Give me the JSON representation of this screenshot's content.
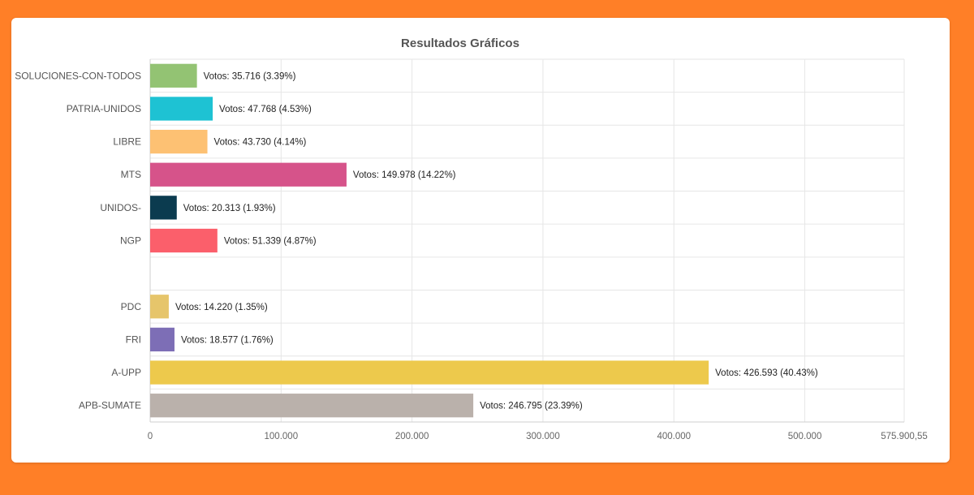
{
  "chart_data": {
    "type": "bar",
    "orientation": "horizontal",
    "title": "Resultados Gráficos",
    "xlabel": "",
    "ylabel": "",
    "xlim": [
      0,
      575900.55
    ],
    "x_ticks": [
      0,
      100000,
      200000,
      300000,
      400000,
      500000,
      575900.55
    ],
    "x_tick_labels": [
      "0",
      "100.000",
      "200.000",
      "300.000",
      "400.000",
      "500.000",
      "575.900,55"
    ],
    "grid": true,
    "legend": "none",
    "bar_label_prefix": "Votos:",
    "categories": [
      "SOLUCIONES-CON-TODOS",
      "PATRIA-UNIDOS",
      "LIBRE",
      "MTS",
      "UNIDOS-",
      "NGP",
      "",
      "PDC",
      "FRI",
      "A-UPP",
      "APB-SUMATE"
    ],
    "values": [
      35716,
      47768,
      43730,
      149978,
      20313,
      51339,
      0,
      14220,
      18577,
      426593,
      246795
    ],
    "value_labels": [
      "35.716",
      "47.768",
      "43.730",
      "149.978",
      "20.313",
      "51.339",
      "",
      "14.220",
      "18.577",
      "426.593",
      "246.795"
    ],
    "percent_labels": [
      "3.39%",
      "4.53%",
      "4.14%",
      "14.22%",
      "1.93%",
      "4.87%",
      "",
      "1.35%",
      "1.76%",
      "40.43%",
      "23.39%"
    ],
    "colors": [
      "#93c373",
      "#1ec2d3",
      "#fdc173",
      "#d6538a",
      "#0b3b4f",
      "#fb5f6b",
      "#ffffff",
      "#e6c56b",
      "#7d6eb6",
      "#edc94c",
      "#bab1ab"
    ]
  }
}
